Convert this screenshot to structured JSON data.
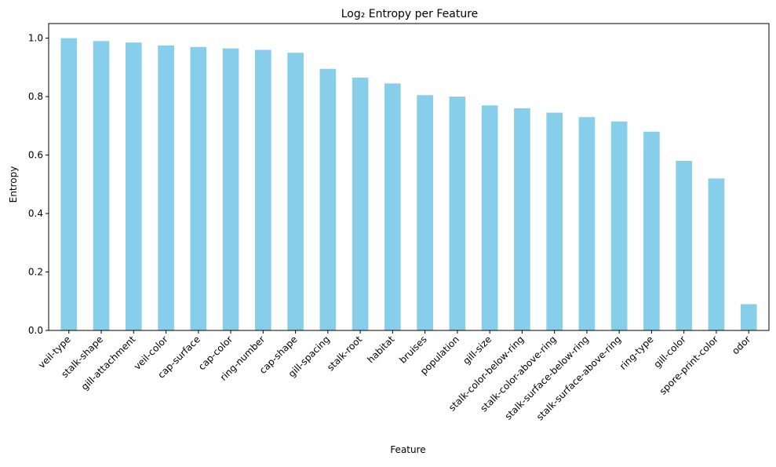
{
  "colors": {
    "bar": "#87CEEB",
    "axis": "#000000",
    "background": "#ffffff"
  },
  "chart_data": {
    "type": "bar",
    "title": "Log₂ Entropy per Feature",
    "xlabel": "Feature",
    "ylabel": "Entropy",
    "ylim": [
      0,
      1.05
    ],
    "grid": false,
    "yticks": [
      "0.0",
      "0.2",
      "0.4",
      "0.6",
      "0.8",
      "1.0"
    ],
    "categories": [
      "veil-type",
      "stalk-shape",
      "gill-attachment",
      "veil-color",
      "cap-surface",
      "cap-color",
      "ring-number",
      "cap-shape",
      "gill-spacing",
      "stalk-root",
      "habitat",
      "bruises",
      "population",
      "gill-size",
      "stalk-color-below-ring",
      "stalk-color-above-ring",
      "stalk-surface-below-ring",
      "stalk-surface-above-ring",
      "ring-type",
      "gill-color",
      "spore-print-color",
      "odor"
    ],
    "values": [
      1.0,
      0.99,
      0.985,
      0.975,
      0.97,
      0.965,
      0.96,
      0.95,
      0.895,
      0.865,
      0.845,
      0.805,
      0.8,
      0.77,
      0.76,
      0.745,
      0.73,
      0.715,
      0.68,
      0.58,
      0.52,
      0.09
    ]
  }
}
